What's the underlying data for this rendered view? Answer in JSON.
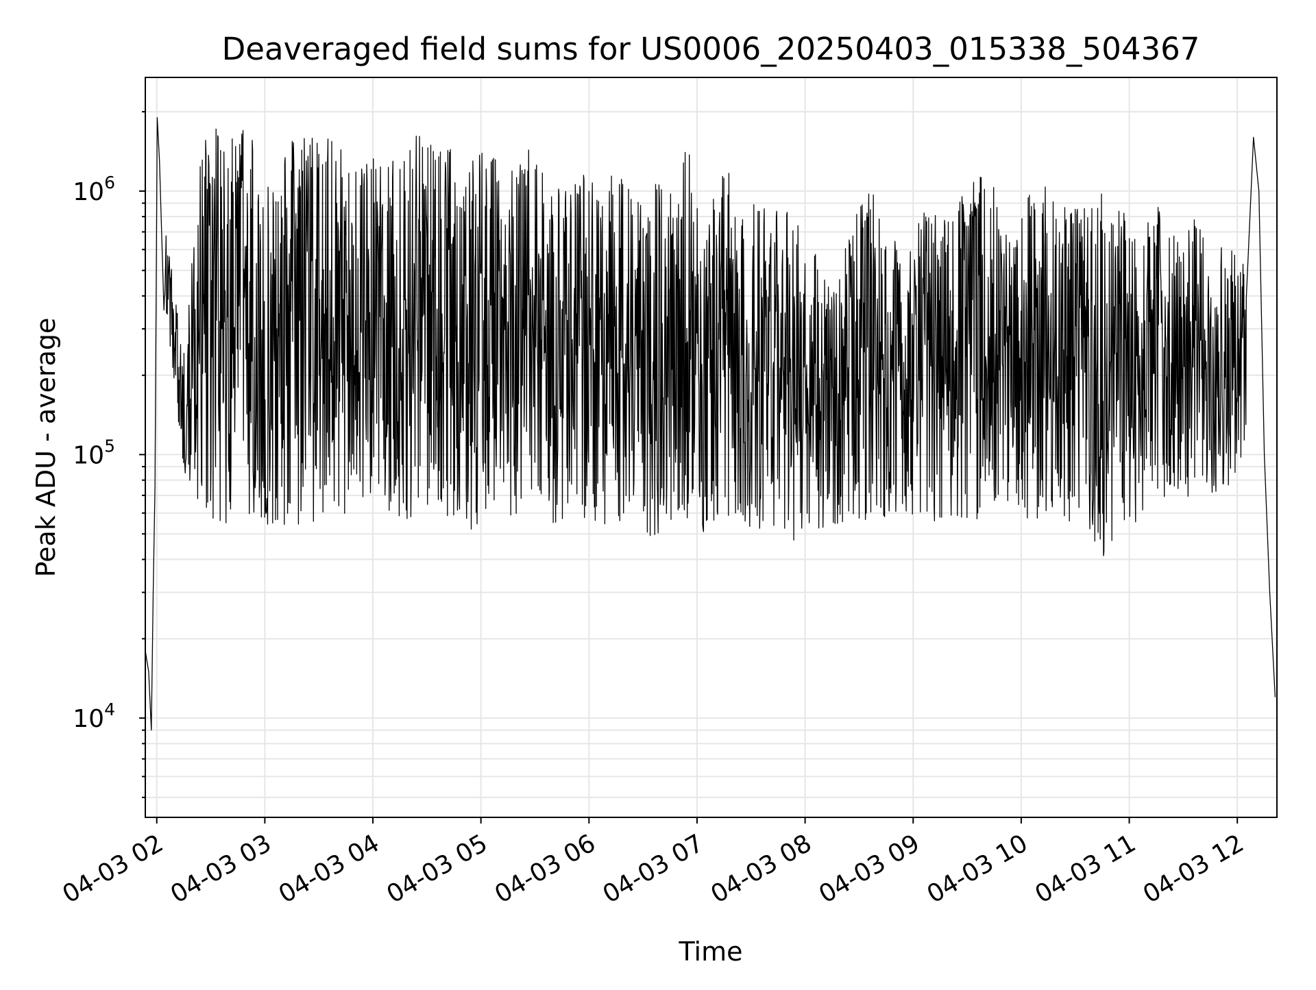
{
  "chart_data": {
    "type": "line",
    "title": "Deaveraged field sums for US0006_20250403_015338_504367",
    "xlabel": "Time",
    "ylabel": "Peak ADU - average",
    "yscale": "log",
    "ylim": [
      4200,
      2700000
    ],
    "xlim": [
      "2025-04-03 01:53:38",
      "2025-04-03 12:22:00"
    ],
    "grid": true,
    "legend": "none",
    "line_color": "#000000",
    "grid_color": "#e6e6e6",
    "x_ticks": [
      {
        "t": "2025-04-03 02:00",
        "label": "04-03 02"
      },
      {
        "t": "2025-04-03 03:00",
        "label": "04-03 03"
      },
      {
        "t": "2025-04-03 04:00",
        "label": "04-03 04"
      },
      {
        "t": "2025-04-03 05:00",
        "label": "04-03 05"
      },
      {
        "t": "2025-04-03 06:00",
        "label": "04-03 06"
      },
      {
        "t": "2025-04-03 07:00",
        "label": "04-03 07"
      },
      {
        "t": "2025-04-03 08:00",
        "label": "04-03 08"
      },
      {
        "t": "2025-04-03 09:00",
        "label": "04-03 09"
      },
      {
        "t": "2025-04-03 10:00",
        "label": "04-03 10"
      },
      {
        "t": "2025-04-03 11:00",
        "label": "04-03 11"
      },
      {
        "t": "2025-04-03 12:00",
        "label": "04-03 12"
      }
    ],
    "y_ticks": [
      {
        "value": 10000,
        "base": "10",
        "exp": "4"
      },
      {
        "value": 100000,
        "base": "10",
        "exp": "5"
      },
      {
        "value": 1000000,
        "base": "10",
        "exp": "6"
      }
    ],
    "series": [
      {
        "x_unit": "time",
        "x": [
          "2025-04-03 01:53:38",
          "2025-04-03 01:55:30",
          "2025-04-03 01:57:00",
          "2025-04-03 01:58:00",
          "2025-04-03 01:59:00",
          "2025-04-03 02:00:15",
          "2025-04-03 02:01:30",
          "2025-04-03 02:04:00",
          "2025-04-03 02:07:00",
          "2025-04-03 02:10:00",
          "2025-04-03 02:13:00",
          "2025-04-03 02:15:00",
          "2025-04-03 02:18:00",
          "2025-04-03 02:22:00",
          "2025-04-03 02:28:00",
          "2025-04-03 02:35:00",
          "2025-04-03 02:42:00",
          "2025-04-03 02:50:00",
          "2025-04-03 03:00:00",
          "2025-04-03 03:12:00",
          "2025-04-03 03:30:00",
          "2025-04-03 03:45:00",
          "2025-04-03 04:00:00",
          "2025-04-03 04:15:00",
          "2025-04-03 04:30:00",
          "2025-04-03 04:45:00",
          "2025-04-03 05:00:00",
          "2025-04-03 05:15:00",
          "2025-04-03 05:30:00",
          "2025-04-03 05:45:00",
          "2025-04-03 06:00:00",
          "2025-04-03 06:15:00",
          "2025-04-03 06:30:00",
          "2025-04-03 06:45:00",
          "2025-04-03 07:00:00",
          "2025-04-03 07:15:00",
          "2025-04-03 07:30:00",
          "2025-04-03 07:45:00",
          "2025-04-03 08:00:00",
          "2025-04-03 08:10:00",
          "2025-04-03 08:20:00",
          "2025-04-03 08:30:00",
          "2025-04-03 08:45:00",
          "2025-04-03 09:00:00",
          "2025-04-03 09:15:00",
          "2025-04-03 09:30:00",
          "2025-04-03 09:45:00",
          "2025-04-03 10:00:00",
          "2025-04-03 10:15:00",
          "2025-04-03 10:30:00",
          "2025-04-03 10:45:00",
          "2025-04-03 11:00:00",
          "2025-04-03 11:15:00",
          "2025-04-03 11:30:00",
          "2025-04-03 11:45:00",
          "2025-04-03 12:00:00",
          "2025-04-03 12:05:00",
          "2025-04-03 12:09:00",
          "2025-04-03 12:12:00",
          "2025-04-03 12:15:00",
          "2025-04-03 12:18:00",
          "2025-04-03 12:21:00"
        ],
        "y": [
          18000,
          15000,
          9000,
          30000,
          75000,
          1900000,
          1300000,
          600000,
          450000,
          550000,
          300000,
          160000,
          110000,
          90000,
          85000,
          90000,
          80000,
          85000,
          80000,
          300000,
          400000,
          500000,
          450000,
          350000,
          300000,
          300000,
          250000,
          300000,
          200000,
          150000,
          180000,
          130000,
          120000,
          110000,
          130000,
          150000,
          160000,
          140000,
          90000,
          80000,
          100000,
          150000,
          300000,
          250000,
          300000,
          350000,
          450000,
          250000,
          300000,
          400000,
          250000,
          200000,
          220000,
          200000,
          220000,
          250000,
          350000,
          1600000,
          1000000,
          100000,
          30000,
          12000
        ]
      }
    ],
    "envelope": {
      "x": [
        "2025-04-03 02:05",
        "2025-04-03 02:15",
        "2025-04-03 02:25",
        "2025-04-03 02:35",
        "2025-04-03 02:45",
        "2025-04-03 02:55",
        "2025-04-03 03:05",
        "2025-04-03 03:15",
        "2025-04-03 03:25",
        "2025-04-03 03:35",
        "2025-04-03 03:45",
        "2025-04-03 03:55",
        "2025-04-03 04:05",
        "2025-04-03 04:15",
        "2025-04-03 04:25",
        "2025-04-03 04:35",
        "2025-04-03 04:45",
        "2025-04-03 04:55",
        "2025-04-03 05:05",
        "2025-04-03 05:15",
        "2025-04-03 05:25",
        "2025-04-03 05:35",
        "2025-04-03 05:45",
        "2025-04-03 05:55",
        "2025-04-03 06:05",
        "2025-04-03 06:15",
        "2025-04-03 06:25",
        "2025-04-03 06:35",
        "2025-04-03 06:45",
        "2025-04-03 06:55",
        "2025-04-03 07:05",
        "2025-04-03 07:15",
        "2025-04-03 07:25",
        "2025-04-03 07:35",
        "2025-04-03 07:45",
        "2025-04-03 07:55",
        "2025-04-03 08:05",
        "2025-04-03 08:15",
        "2025-04-03 08:25",
        "2025-04-03 08:35",
        "2025-04-03 08:45",
        "2025-04-03 08:55",
        "2025-04-03 09:05",
        "2025-04-03 09:15",
        "2025-04-03 09:25",
        "2025-04-03 09:35",
        "2025-04-03 09:45",
        "2025-04-03 09:55",
        "2025-04-03 10:05",
        "2025-04-03 10:15",
        "2025-04-03 10:25",
        "2025-04-03 10:35",
        "2025-04-03 10:45",
        "2025-04-03 10:55",
        "2025-04-03 11:05",
        "2025-04-03 11:15",
        "2025-04-03 11:25",
        "2025-04-03 11:35",
        "2025-04-03 11:45",
        "2025-04-03 11:55",
        "2025-04-03 12:05"
      ],
      "high": [
        700000,
        250000,
        1700000,
        1800000,
        1800000,
        1700000,
        1000000,
        1700000,
        1600000,
        1700000,
        1500000,
        1300000,
        1400000,
        1500000,
        1700000,
        1600000,
        1500000,
        1400000,
        1500000,
        1200000,
        1600000,
        1300000,
        1000000,
        1500000,
        1000000,
        1200000,
        1000000,
        1100000,
        1000000,
        1500000,
        700000,
        1400000,
        800000,
        1000000,
        1000000,
        800000,
        600000,
        400000,
        700000,
        1100000,
        900000,
        500000,
        900000,
        800000,
        900000,
        1200000,
        1100000,
        600000,
        1000000,
        1100000,
        900000,
        1100000,
        1000000,
        900000,
        700000,
        900000,
        700000,
        800000,
        700000,
        600000,
        600000
      ],
      "low": [
        350000,
        85000,
        60000,
        55000,
        55000,
        55000,
        50000,
        55000,
        50000,
        55000,
        60000,
        60000,
        60000,
        55000,
        55000,
        60000,
        55000,
        50000,
        60000,
        55000,
        60000,
        55000,
        55000,
        55000,
        55000,
        50000,
        55000,
        45000,
        55000,
        55000,
        50000,
        55000,
        55000,
        50000,
        55000,
        45000,
        50000,
        50000,
        60000,
        50000,
        55000,
        60000,
        55000,
        55000,
        55000,
        55000,
        60000,
        65000,
        55000,
        60000,
        55000,
        60000,
        38000,
        50000,
        55000,
        60000,
        70000,
        65000,
        70000,
        75000,
        100000
      ]
    }
  }
}
